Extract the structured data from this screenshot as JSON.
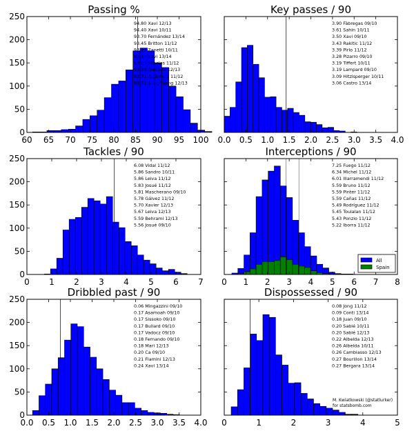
{
  "credit": {
    "line1": "M. Kwiatkowski (@statlurker)",
    "line2": "for statsbomb.com"
  },
  "colors": {
    "all": "#0000ff",
    "spain": "#008000",
    "vline": "#000000"
  },
  "chart_data": [
    {
      "type": "bar",
      "title": "Passing %",
      "xlim": [
        60,
        100
      ],
      "ylim": [
        0,
        250
      ],
      "xticks": [
        60,
        65,
        70,
        75,
        80,
        85,
        90,
        95,
        100
      ],
      "xtick_labels": [
        "60",
        "65",
        "70",
        "75",
        "80",
        "85",
        "90",
        "95",
        "100"
      ],
      "yticks": [
        0,
        50,
        100,
        150,
        200,
        250
      ],
      "bin_start": 61.3,
      "bin_width": 1.65,
      "series": [
        {
          "values": [
            1,
            1,
            4,
            4,
            6,
            7,
            14,
            28,
            36,
            48,
            75,
            104,
            111,
            135,
            176,
            182,
            176,
            150,
            140,
            100,
            77,
            49,
            20,
            5,
            2
          ]
        }
      ],
      "vline": 85.5,
      "annotations": [
        "94.80 Xavi 12/13",
        "94.40 Xavi 10/11",
        "93.70 Fernández 13/14",
        "93.45 Britton 11/12",
        "93.20 Zanetti 10/11",
        "93.13 Xavi 13/14",
        "93.05 Scholes 11/12",
        "92.98 Gustavo 12/13",
        "92.71 Alcántara 11/12",
        "92.71 Sung-Yueng 12/13"
      ]
    },
    {
      "type": "bar",
      "title": "Key passes / 90",
      "xlim": [
        0,
        4
      ],
      "ylim": [
        0,
        250
      ],
      "xticks": [
        0,
        0.5,
        1,
        1.5,
        2,
        2.5,
        3,
        3.5,
        4
      ],
      "xtick_labels": [
        "0.0",
        "0.5",
        "1.0",
        "1.5",
        "2.0",
        "2.5",
        "3.0",
        "3.5",
        "4.0"
      ],
      "yticks": [
        0,
        50,
        100,
        150,
        200,
        250
      ],
      "bin_start": 0,
      "bin_width": 0.133,
      "series": [
        {
          "values": [
            35,
            54,
            109,
            183,
            188,
            147,
            118,
            76,
            77,
            54,
            48,
            52,
            43,
            37,
            23,
            22,
            17,
            10,
            11,
            4,
            3,
            0,
            1
          ]
        }
      ],
      "vline": 1.43,
      "annotations": [
        "3.90 Fàbregas 09/10",
        "3.61 Sahin 10/11",
        "3.50 Xavi 09/10",
        "3.43 Rakitic 11/12",
        "3.39 Pirlo 11/12",
        "3.28 Pizarro 09/10",
        "3.19 Tiffert 10/11",
        "3.19 Lampard 09/10",
        "3.09 Hitzlsperger 10/11",
        "3.06 Castro 13/14"
      ]
    },
    {
      "type": "bar",
      "title": "Tackles / 90",
      "xlim": [
        0,
        7
      ],
      "ylim": [
        0,
        250
      ],
      "xticks": [
        0,
        1,
        2,
        3,
        4,
        5,
        6,
        7
      ],
      "xtick_labels": [
        "0",
        "1",
        "2",
        "3",
        "4",
        "5",
        "6",
        "7"
      ],
      "yticks": [
        0,
        50,
        100,
        150,
        200,
        250
      ],
      "bin_start": 0.7,
      "bin_width": 0.25,
      "series": [
        {
          "values": [
            1,
            12,
            35,
            96,
            119,
            123,
            145,
            164,
            159,
            152,
            168,
            113,
            101,
            71,
            62,
            42,
            31,
            23,
            14,
            8,
            11,
            5,
            2
          ]
        }
      ],
      "vline": 3.52,
      "annotations": [
        "6.08 Vidal 11/12",
        "5.86 Sandro 10/11",
        "5.86 Leiva 11/12",
        "5.83 Josué 11/12",
        "5.81 Mascherano 09/10",
        "5.78 Gálvez 11/12",
        "5.70 Xavier 12/13",
        "5.67 Leiva 12/13",
        "5.59 Behrami 12/13",
        "5.56 Josué 09/10"
      ]
    },
    {
      "type": "bar",
      "title": "Interceptions / 90",
      "xlim": [
        0,
        8
      ],
      "ylim": [
        0,
        250
      ],
      "xticks": [
        0,
        1,
        2,
        3,
        4,
        5,
        6,
        7,
        8
      ],
      "xtick_labels": [
        "0",
        "1",
        "2",
        "3",
        "4",
        "5",
        "6",
        "7",
        "8"
      ],
      "yticks": [
        0,
        50,
        100,
        150,
        200,
        250
      ],
      "bin_start": 0.35,
      "bin_width": 0.28,
      "series": [
        {
          "name": "All",
          "color": "#0000ff",
          "values": [
            3,
            13,
            42,
            90,
            168,
            204,
            223,
            234,
            191,
            166,
            117,
            90,
            60,
            40,
            22,
            14,
            5,
            2,
            1,
            1
          ]
        },
        {
          "name": "Spain",
          "color": "#008000",
          "values": [
            0,
            2,
            6,
            12,
            22,
            28,
            28,
            30,
            38,
            32,
            22,
            18,
            15,
            8,
            4,
            2,
            1,
            0,
            0,
            0
          ]
        }
      ],
      "vlines": [
        2.85,
        3.45
      ],
      "legend": "bottom-right",
      "annotations": [
        "7.25 Fuego 11/12",
        "6.34 Michel 11/12",
        "6.01 Illarramendi 11/12",
        "5.59 Bruno 11/12",
        "5.59 Pinter 11/12",
        "5.59 Cañas 11/12",
        "5.49 Rodríguez 11/12",
        "5.45 Toulalan 11/12",
        "5.43 Ponzio 11/12",
        "5.22 Iborra 11/12"
      ]
    },
    {
      "type": "bar",
      "title": "Dribbled past / 90",
      "xlim": [
        0,
        4
      ],
      "ylim": [
        0,
        250
      ],
      "xticks": [
        0,
        0.5,
        1,
        1.5,
        2,
        2.5,
        3,
        3.5,
        4
      ],
      "xtick_labels": [
        "0.0",
        "0.5",
        "1.0",
        "1.5",
        "2.0",
        "2.5",
        "3.0",
        "3.5",
        "4.0"
      ],
      "yticks": [
        0,
        50,
        100,
        150,
        200,
        250
      ],
      "bin_start": 0.13,
      "bin_width": 0.147,
      "series": [
        {
          "values": [
            10,
            42,
            67,
            100,
            124,
            162,
            197,
            191,
            147,
            125,
            100,
            77,
            54,
            43,
            27,
            27,
            15,
            10,
            6,
            5,
            4,
            2,
            1
          ]
        }
      ],
      "vline": 0.77,
      "annotations": [
        "0.06 Mingazzini 09/10",
        "0.17 Asamoah 09/10",
        "0.17 Sissoko 09/10",
        "0.17 Bullard 09/10",
        "0.17 Vadocz 09/10",
        "0.18 Fernando 09/10",
        "0.18 Mari 12/13",
        "0.20 Ca 09/10",
        "0.21 Flamini 12/13",
        "0.24 Xavi 13/14"
      ]
    },
    {
      "type": "bar",
      "title": "Dispossessed / 90",
      "xlim": [
        0,
        5
      ],
      "ylim": [
        0,
        250
      ],
      "xticks": [
        0,
        1,
        2,
        3,
        4,
        5
      ],
      "xtick_labels": [
        "0",
        "1",
        "2",
        "3",
        "4",
        "5"
      ],
      "yticks": [
        0,
        50,
        100,
        150,
        200,
        250
      ],
      "bin_start": 0.2,
      "bin_width": 0.183,
      "series": [
        {
          "values": [
            18,
            55,
            102,
            175,
            161,
            217,
            211,
            130,
            108,
            69,
            70,
            47,
            35,
            25,
            19,
            15,
            11,
            6,
            2,
            2
          ]
        }
      ],
      "vline": 0.75,
      "annotations": [
        "0.08 Jong 11/12",
        "0.09 Conti 13/14",
        "0.18 Juan 09/10",
        "0.20 Sablé 10/11",
        "0.20 Sablé 12/13",
        "0.22 Albelda 12/13",
        "0.26 Albelda 10/11",
        "0.26 Cambiasso 12/13",
        "0.27 Bourillon 13/14",
        "0.27 Bergara 13/14"
      ]
    }
  ]
}
